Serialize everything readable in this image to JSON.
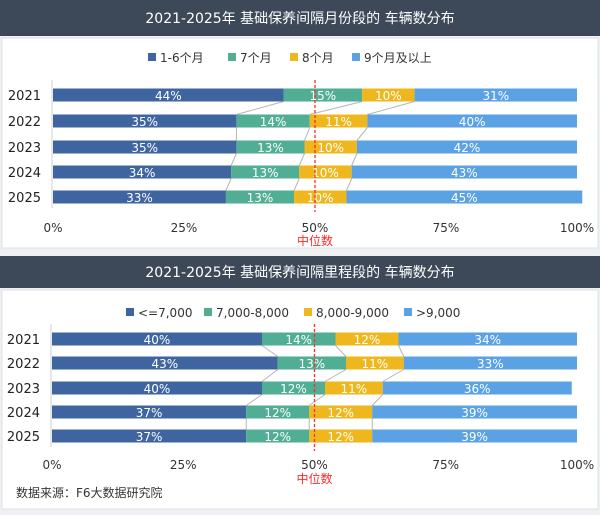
{
  "colors": {
    "header_bg": "#3d4858",
    "median_line": "#ff2a2a",
    "connector": "#b5b5b5"
  },
  "source": "数据来源：F6大数据研究院",
  "chart_data": [
    {
      "type": "bar",
      "orientation": "horizontal",
      "stacked": "percent",
      "title": "2021-2025年 基础保养间隔月份段的 车辆数分布",
      "categories": [
        "2021",
        "2022",
        "2023",
        "2024",
        "2025"
      ],
      "series": [
        {
          "name": "1-6个月",
          "color": "#3f65a0",
          "values": [
            44,
            35,
            35,
            34,
            33
          ]
        },
        {
          "name": "7个月",
          "color": "#4fae93",
          "values": [
            15,
            14,
            13,
            13,
            13
          ]
        },
        {
          "name": "8个月",
          "color": "#efb71e",
          "values": [
            10,
            11,
            10,
            10,
            10
          ]
        },
        {
          "name": "9个月及以上",
          "color": "#5aa2e4",
          "values": [
            31,
            40,
            42,
            43,
            45
          ]
        }
      ],
      "xticks": [
        "0%",
        "25%",
        "50%",
        "75%",
        "100%"
      ],
      "xlim": [
        0,
        100
      ],
      "reference_line": {
        "value": 50,
        "label": "中位数"
      },
      "legend": "top"
    },
    {
      "type": "bar",
      "orientation": "horizontal",
      "stacked": "percent",
      "title": "2021-2025年 基础保养间隔里程段的 车辆数分布",
      "categories": [
        "2021",
        "2022",
        "2023",
        "2024",
        "2025"
      ],
      "series": [
        {
          "name": "<=7,000",
          "color": "#3f65a0",
          "values": [
            40,
            43,
            40,
            37,
            37
          ]
        },
        {
          "name": "7,000-8,000",
          "color": "#4fae93",
          "values": [
            14,
            13,
            12,
            12,
            12
          ]
        },
        {
          "name": "8,000-9,000",
          "color": "#efb71e",
          "values": [
            12,
            11,
            11,
            12,
            12
          ]
        },
        {
          "name": ">9,000",
          "color": "#5aa2e4",
          "values": [
            34,
            33,
            36,
            39,
            39
          ]
        }
      ],
      "xticks": [
        "0%",
        "25%",
        "50%",
        "75%",
        "100%"
      ],
      "xlim": [
        0,
        100
      ],
      "reference_line": {
        "value": 50,
        "label": "中位数"
      },
      "legend": "top"
    }
  ]
}
